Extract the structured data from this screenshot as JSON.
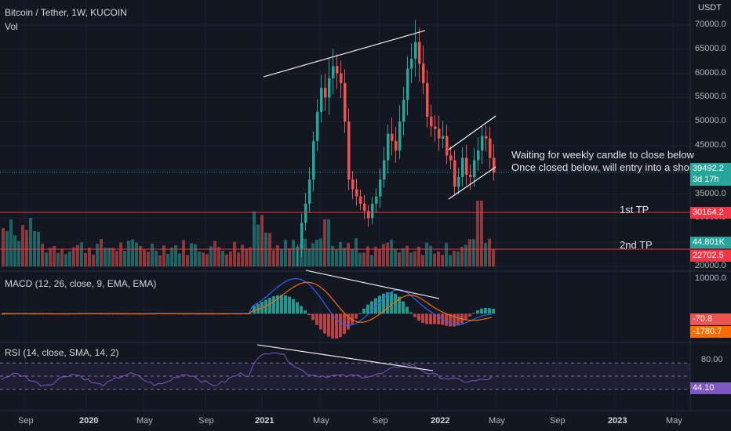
{
  "header": {
    "symbol": "Bitcoin / Tether, 1W, KUCOIN",
    "vol_label": "Vol",
    "macd_label": "MACD (12, 26, close, 9, EMA, EMA)",
    "rsi_label": "RSI (14, close, SMA, 14, 2)",
    "currency": "USDT"
  },
  "annotations": {
    "line1": "Waiting for weekly candle to close below",
    "line2": "Once closed below, will entry into a shor",
    "tp1": "1st TP",
    "tp2": "2nd TP"
  },
  "price_tags": {
    "last": "39492.2",
    "countdown": "3d 17h",
    "tp1": "30164.2",
    "volume": "44.801K",
    "tp2": "22702.5",
    "macd": "-70.8",
    "signal": "-1780.7",
    "rsi": "44.10"
  },
  "colors": {
    "up": "#26a69a",
    "down": "#ef5350",
    "tp_line": "#f23645",
    "macd_line": "#2962ff",
    "signal_line": "#ff6d00",
    "rsi_line": "#7e57c2",
    "last_price": "#26a69a",
    "countdown": "#26a69a",
    "volume_tag": "#26a69a",
    "macd_tag": "#ef5350",
    "signal_tag": "#ff6d00",
    "rsi_tag": "#7e57c2"
  },
  "chart_data": {
    "type": "candlestick",
    "timeframe": "1W",
    "x_ticks": [
      "Sep",
      "2020",
      "May",
      "Sep",
      "2021",
      "May",
      "Sep",
      "2022",
      "May",
      "Sep",
      "2023",
      "May"
    ],
    "y_ticks": [
      "70000.0",
      "65000.0",
      "60000.0",
      "55000.0",
      "50000.0",
      "45000.0",
      "40000.0",
      "35000.0",
      "30000.0",
      "25000.0",
      "20000.0"
    ],
    "price_range": [
      20000,
      70000
    ],
    "price_path": [
      8200,
      10300,
      7800,
      10200,
      9200,
      10800,
      10500,
      11400,
      11000,
      13500,
      15800,
      18500,
      19200,
      23500,
      29000,
      33000,
      38000,
      46000,
      52000,
      57000,
      55000,
      59000,
      61500,
      60000,
      58000,
      50000,
      38000,
      36000,
      34500,
      33000,
      31500,
      30000,
      33000,
      34500,
      38000,
      42000,
      47500,
      46000,
      44000,
      50000,
      54500,
      61000,
      63000,
      66500,
      62000,
      58000,
      51000,
      49000,
      48500,
      46500,
      47000,
      43000,
      42000,
      36500,
      38500,
      42500,
      39000,
      38500,
      42000,
      44000,
      47000,
      46500,
      42500,
      39500
    ],
    "tp_levels": [
      30164.2,
      22702.5
    ],
    "last_price": 39492.2,
    "trendlines": [
      {
        "pane": "price",
        "from": [
          "2021-03",
          61500
        ],
        "to": [
          "2021-11",
          69000
        ]
      },
      {
        "pane": "price",
        "from": [
          "2022-01",
          44000
        ],
        "to": [
          "2022-04",
          50500
        ]
      },
      {
        "pane": "price",
        "from": [
          "2022-01",
          33500
        ],
        "to": [
          "2022-04",
          40000
        ]
      },
      {
        "pane": "macd",
        "from": [
          "2021-04",
          9500
        ],
        "to": [
          "2021-11",
          3500
        ]
      },
      {
        "pane": "rsi",
        "from": [
          "2021-01",
          89
        ],
        "to": [
          "2021-11",
          71
        ]
      }
    ],
    "macd": {
      "ticks": [
        "10000.0"
      ],
      "range": [
        -7500,
        11000
      ],
      "macd_last": -70.8,
      "signal_last": -1780.7
    },
    "rsi": {
      "ticks": [
        "80.00"
      ],
      "bands": [
        70,
        30
      ],
      "last": 44.1
    }
  }
}
